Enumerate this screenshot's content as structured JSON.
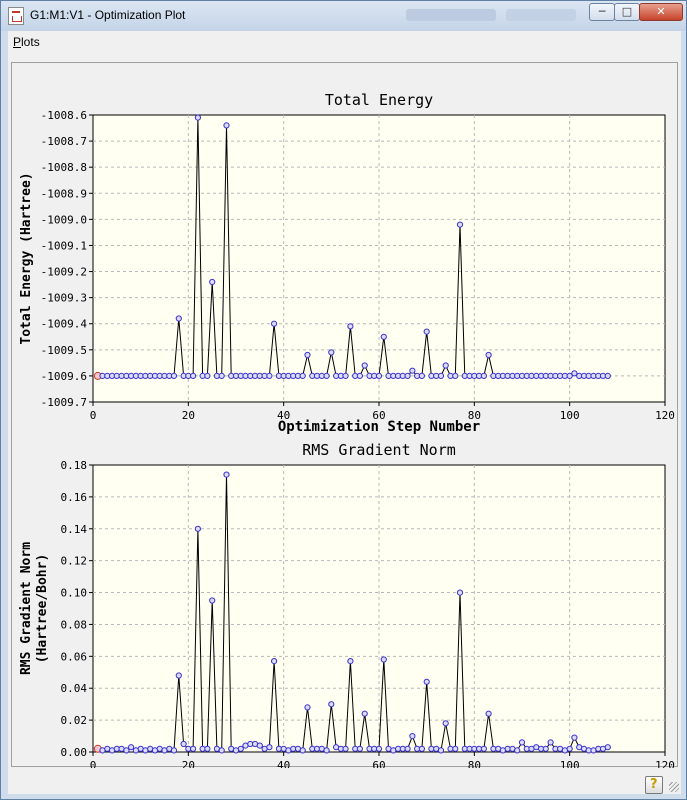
{
  "window": {
    "title": "G1:M1:V1 - Optimization Plot",
    "buttons": {
      "minimize": "─",
      "maximize": "□",
      "close": "✕"
    }
  },
  "menu": {
    "plots_label": "Plots",
    "plots_accel": "P",
    "plots_rest": "lots"
  },
  "icons": {
    "app": "gaussview-document-icon",
    "help": "help-icon"
  },
  "colors": {
    "marker": "#3b32c8",
    "first_marker": "#d03a3a",
    "plot_bg": "#fffff2",
    "line": "#000000"
  },
  "chart_data": [
    {
      "type": "line",
      "title": "Total Energy",
      "xlabel": "Optimization Step Number",
      "ylabel": "Total Energy (Hartree)",
      "xlim": [
        0,
        120
      ],
      "ylim": [
        -1009.7,
        -1008.6
      ],
      "grid": true,
      "x": [
        1,
        2,
        3,
        4,
        5,
        6,
        7,
        8,
        9,
        10,
        11,
        12,
        13,
        14,
        15,
        16,
        17,
        18,
        19,
        20,
        21,
        22,
        23,
        24,
        25,
        26,
        27,
        28,
        29,
        30,
        31,
        32,
        33,
        34,
        35,
        36,
        37,
        38,
        39,
        40,
        41,
        42,
        43,
        44,
        45,
        46,
        47,
        48,
        49,
        50,
        51,
        52,
        53,
        54,
        55,
        56,
        57,
        58,
        59,
        60,
        61,
        62,
        63,
        64,
        65,
        66,
        67,
        68,
        69,
        70,
        71,
        72,
        73,
        74,
        75,
        76,
        77,
        78,
        79,
        80,
        81,
        82,
        83,
        84,
        85,
        86,
        87,
        88,
        89,
        90,
        91,
        92,
        93,
        94,
        95,
        96,
        97,
        98,
        99,
        100,
        101,
        102,
        103,
        104,
        105,
        106,
        107,
        108
      ],
      "values": [
        -1009.6,
        -1009.6,
        -1009.6,
        -1009.6,
        -1009.6,
        -1009.6,
        -1009.6,
        -1009.6,
        -1009.6,
        -1009.6,
        -1009.6,
        -1009.6,
        -1009.6,
        -1009.6,
        -1009.6,
        -1009.6,
        -1009.6,
        -1009.38,
        -1009.6,
        -1009.6,
        -1009.6,
        -1008.61,
        -1009.6,
        -1009.6,
        -1009.24,
        -1009.6,
        -1009.6,
        -1008.64,
        -1009.6,
        -1009.6,
        -1009.6,
        -1009.6,
        -1009.6,
        -1009.6,
        -1009.6,
        -1009.6,
        -1009.6,
        -1009.4,
        -1009.6,
        -1009.6,
        -1009.6,
        -1009.6,
        -1009.6,
        -1009.6,
        -1009.52,
        -1009.6,
        -1009.6,
        -1009.6,
        -1009.6,
        -1009.51,
        -1009.6,
        -1009.6,
        -1009.6,
        -1009.41,
        -1009.6,
        -1009.6,
        -1009.56,
        -1009.6,
        -1009.6,
        -1009.6,
        -1009.45,
        -1009.6,
        -1009.6,
        -1009.6,
        -1009.6,
        -1009.6,
        -1009.58,
        -1009.6,
        -1009.6,
        -1009.43,
        -1009.6,
        -1009.6,
        -1009.6,
        -1009.56,
        -1009.6,
        -1009.6,
        -1009.02,
        -1009.6,
        -1009.6,
        -1009.6,
        -1009.6,
        -1009.6,
        -1009.52,
        -1009.6,
        -1009.6,
        -1009.6,
        -1009.6,
        -1009.6,
        -1009.6,
        -1009.6,
        -1009.6,
        -1009.6,
        -1009.6,
        -1009.6,
        -1009.6,
        -1009.6,
        -1009.6,
        -1009.6,
        -1009.6,
        -1009.6,
        -1009.59,
        -1009.6,
        -1009.6,
        -1009.6,
        -1009.6,
        -1009.6,
        -1009.6,
        -1009.6
      ],
      "yticks": [
        "-1008.6",
        "-1008.7",
        "-1008.8",
        "-1008.9",
        "-1009.0",
        "-1009.1",
        "-1009.2",
        "-1009.3",
        "-1009.4",
        "-1009.5",
        "-1009.6",
        "-1009.7"
      ],
      "xticks": [
        "0",
        "20",
        "40",
        "60",
        "80",
        "100",
        "120"
      ]
    },
    {
      "type": "line",
      "title": "RMS Gradient Norm",
      "xlabel": "Optimization Step Number",
      "ylabel_line1": "RMS Gradient Norm",
      "ylabel_line2": "(Hartree/Bohr)",
      "xlim": [
        0,
        120
      ],
      "ylim": [
        0,
        0.18
      ],
      "grid": true,
      "x": [
        1,
        2,
        3,
        4,
        5,
        6,
        7,
        8,
        9,
        10,
        11,
        12,
        13,
        14,
        15,
        16,
        17,
        18,
        19,
        20,
        21,
        22,
        23,
        24,
        25,
        26,
        27,
        28,
        29,
        30,
        31,
        32,
        33,
        34,
        35,
        36,
        37,
        38,
        39,
        40,
        41,
        42,
        43,
        44,
        45,
        46,
        47,
        48,
        49,
        50,
        51,
        52,
        53,
        54,
        55,
        56,
        57,
        58,
        59,
        60,
        61,
        62,
        63,
        64,
        65,
        66,
        67,
        68,
        69,
        70,
        71,
        72,
        73,
        74,
        75,
        76,
        77,
        78,
        79,
        80,
        81,
        82,
        83,
        84,
        85,
        86,
        87,
        88,
        89,
        90,
        91,
        92,
        93,
        94,
        95,
        96,
        97,
        98,
        99,
        100,
        101,
        102,
        103,
        104,
        105,
        106,
        107,
        108
      ],
      "values": [
        0.002,
        0.001,
        0.002,
        0.001,
        0.002,
        0.002,
        0.001,
        0.003,
        0.001,
        0.002,
        0.001,
        0.002,
        0.001,
        0.002,
        0.001,
        0.002,
        0.001,
        0.048,
        0.005,
        0.002,
        0.002,
        0.14,
        0.002,
        0.002,
        0.095,
        0.002,
        0.001,
        0.174,
        0.002,
        0.001,
        0.002,
        0.004,
        0.005,
        0.005,
        0.004,
        0.002,
        0.003,
        0.057,
        0.002,
        0.002,
        0.001,
        0.002,
        0.002,
        0.001,
        0.028,
        0.002,
        0.002,
        0.002,
        0.001,
        0.03,
        0.003,
        0.002,
        0.002,
        0.057,
        0.002,
        0.002,
        0.024,
        0.002,
        0.002,
        0.002,
        0.058,
        0.002,
        0.001,
        0.002,
        0.002,
        0.002,
        0.01,
        0.002,
        0.002,
        0.044,
        0.002,
        0.002,
        0.001,
        0.018,
        0.002,
        0.002,
        0.1,
        0.002,
        0.002,
        0.002,
        0.002,
        0.002,
        0.024,
        0.002,
        0.002,
        0.001,
        0.002,
        0.002,
        0.001,
        0.006,
        0.002,
        0.002,
        0.003,
        0.002,
        0.002,
        0.006,
        0.002,
        0.002,
        0.001,
        0.002,
        0.009,
        0.003,
        0.002,
        0.001,
        0.001,
        0.002,
        0.002,
        0.003
      ],
      "yticks": [
        "0.18",
        "0.16",
        "0.14",
        "0.12",
        "0.10",
        "0.08",
        "0.06",
        "0.04",
        "0.02",
        "0.00"
      ],
      "xticks": [
        "0",
        "20",
        "40",
        "60",
        "80",
        "100",
        "120"
      ]
    }
  ]
}
